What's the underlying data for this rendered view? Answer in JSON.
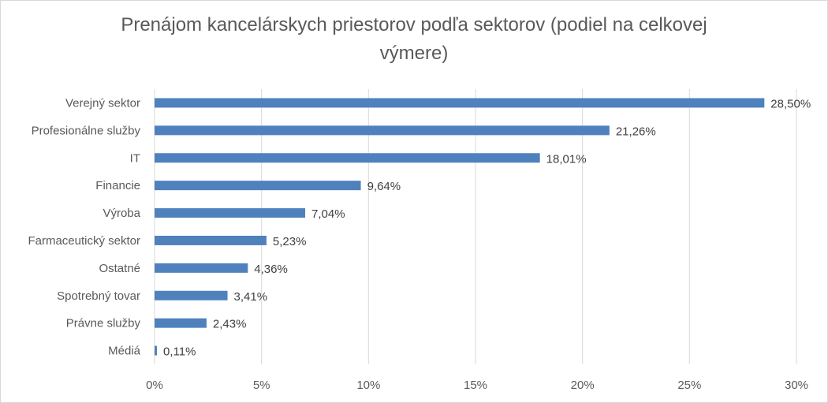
{
  "chart_data": {
    "type": "bar",
    "orientation": "horizontal",
    "title_lines": [
      "Prenájom kancelárskych priestorov podľa sektorov (podiel na celkovej",
      "výmere)"
    ],
    "categories": [
      "Verejný sektor",
      "Profesionálne služby",
      "IT",
      "Financie",
      "Výroba",
      "Farmaceutický sektor",
      "Ostatné",
      "Spotrebný tovar",
      "Právne služby",
      "Médiá"
    ],
    "values": [
      28.5,
      21.26,
      18.01,
      9.64,
      7.04,
      5.23,
      4.36,
      3.41,
      2.43,
      0.11
    ],
    "data_labels": [
      "28,50%",
      "21,26%",
      "18,01%",
      "9,64%",
      "7,04%",
      "5,23%",
      "4,36%",
      "3,41%",
      "2,43%",
      "0,11%"
    ],
    "xlim": [
      0,
      30
    ],
    "x_ticks": [
      0,
      5,
      10,
      15,
      20,
      25,
      30
    ],
    "x_tick_labels": [
      "0%",
      "5%",
      "10%",
      "15%",
      "20%",
      "25%",
      "30%"
    ],
    "grid": "vertical",
    "bar_color": "#4f81bd",
    "grid_color": "#d9d9d9"
  }
}
